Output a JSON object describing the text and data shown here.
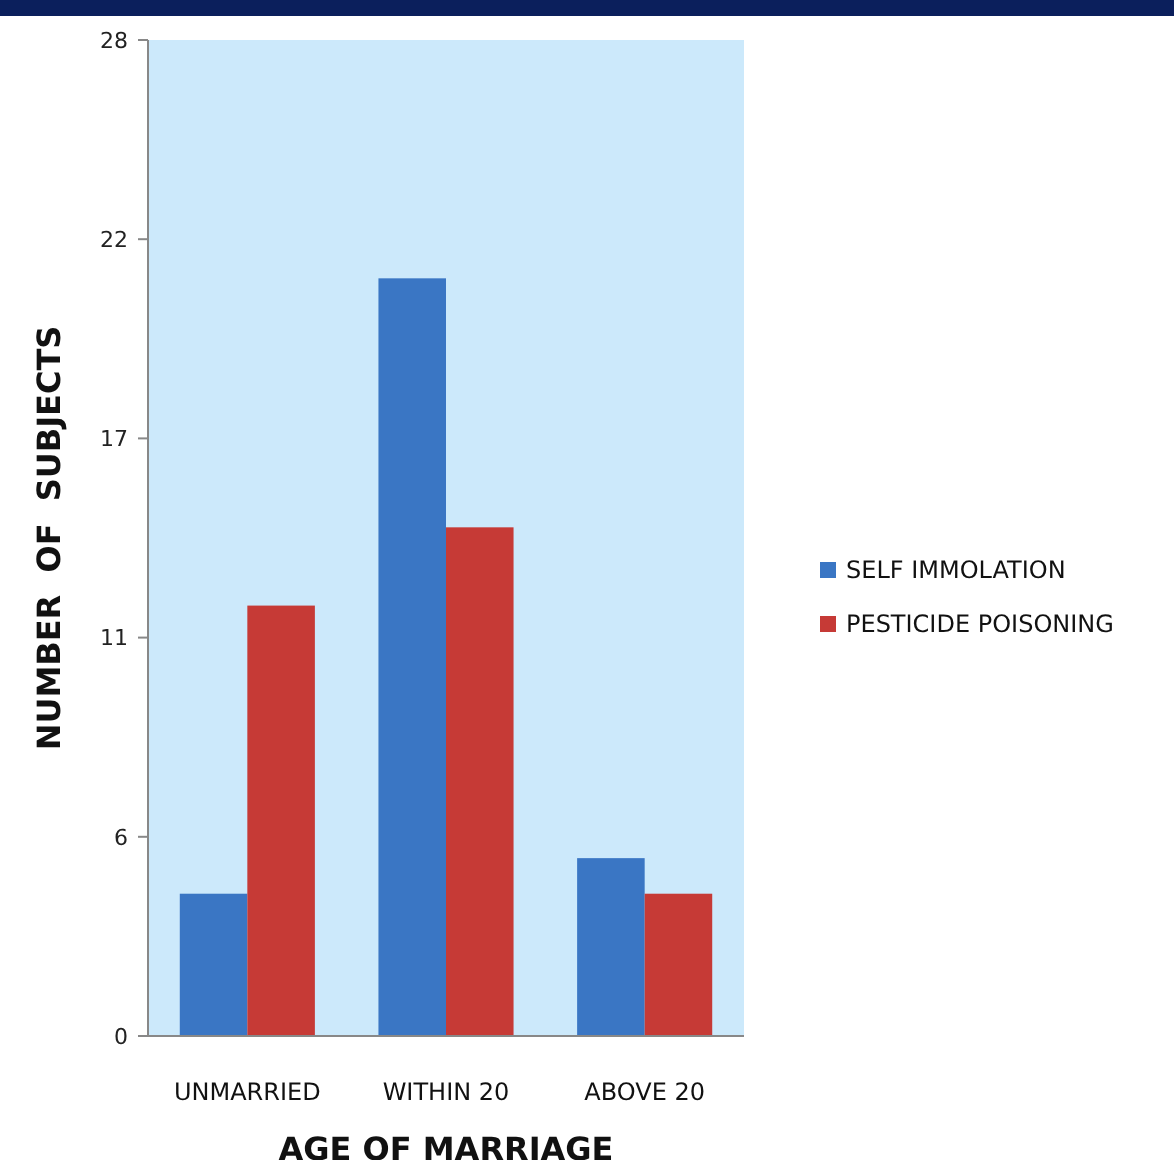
{
  "chart_data": {
    "type": "bar",
    "xlabel": "AGE OF MARRIAGE",
    "ylabel": "NUMBER  OF  SUBJECTS",
    "categories": [
      "UNMARRIED",
      "WITHIN 20",
      "ABOVE 20"
    ],
    "series": [
      {
        "name": "SELF IMMOLATION",
        "color": "#3a76c4",
        "values": [
          4,
          21.3,
          5
        ]
      },
      {
        "name": "PESTICIDE POISONING",
        "color": "#c63a36",
        "values": [
          12.1,
          14.3,
          4
        ]
      }
    ],
    "ylim": [
      0,
      28
    ],
    "yticks": [
      0,
      {
        "value": 5.6,
        "label": "6"
      },
      {
        "value": 11.2,
        "label": "11"
      },
      {
        "value": 16.8,
        "label": "17"
      },
      {
        "value": 22.4,
        "label": "22"
      },
      28
    ],
    "grid": false,
    "legend": "right"
  }
}
